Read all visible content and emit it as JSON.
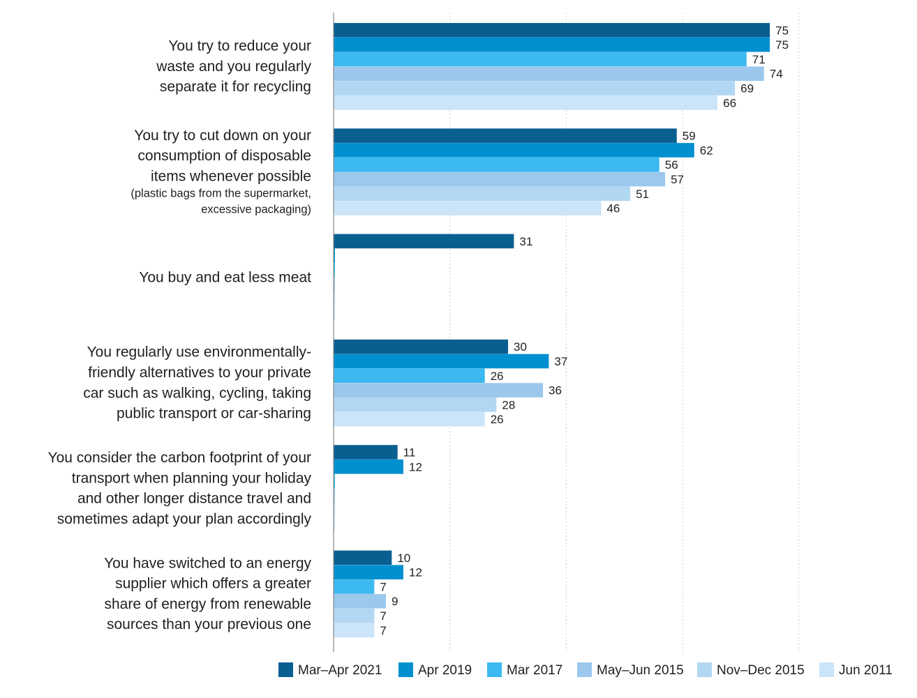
{
  "chart_data": {
    "type": "bar",
    "orientation": "horizontal",
    "title": "",
    "xlabel": "",
    "ylabel": "",
    "xlim": [
      0,
      80
    ],
    "grid": true,
    "legend_position": "bottom",
    "categories": [
      {
        "lines": [
          "You try to reduce your",
          "waste and you regularly",
          "separate it for recycling"
        ],
        "sub": []
      },
      {
        "lines": [
          "You try to cut down on your",
          "consumption of disposable",
          "items whenever possible"
        ],
        "sub": [
          "(plastic bags from the supermarket,",
          "excessive packaging)"
        ]
      },
      {
        "lines": [
          "You buy and eat less meat"
        ],
        "sub": []
      },
      {
        "lines": [
          "You regularly use environmentally-",
          "friendly alternatives to your private",
          "car such as walking, cycling, taking",
          "public transport or car-sharing"
        ],
        "sub": []
      },
      {
        "lines": [
          "You consider the carbon footprint of your",
          "transport when planning your holiday",
          "and other longer distance travel and",
          "sometimes adapt your plan accordingly"
        ],
        "sub": []
      },
      {
        "lines": [
          "You have switched to an energy",
          "supplier which offers a greater",
          "share of energy from renewable",
          "sources than your previous one"
        ],
        "sub": []
      }
    ],
    "series": [
      {
        "name": "Mar–Apr 2021",
        "color": "#0a5f91",
        "values": [
          75,
          59,
          31,
          30,
          11,
          10
        ]
      },
      {
        "name": "Apr 2019",
        "color": "#0090d0",
        "values": [
          75,
          62,
          null,
          37,
          12,
          12
        ]
      },
      {
        "name": "Mar 2017",
        "color": "#3cb9f0",
        "values": [
          71,
          56,
          null,
          26,
          null,
          7
        ]
      },
      {
        "name": "May–Jun 2015",
        "color": "#9bc8ec",
        "values": [
          74,
          57,
          null,
          36,
          null,
          9
        ]
      },
      {
        "name": "Nov–Dec 2015",
        "color": "#b1d7f3",
        "values": [
          69,
          51,
          null,
          28,
          null,
          7
        ]
      },
      {
        "name": "Jun 2011",
        "color": "#cbe4f8",
        "values": [
          66,
          46,
          null,
          26,
          null,
          7
        ]
      }
    ]
  }
}
